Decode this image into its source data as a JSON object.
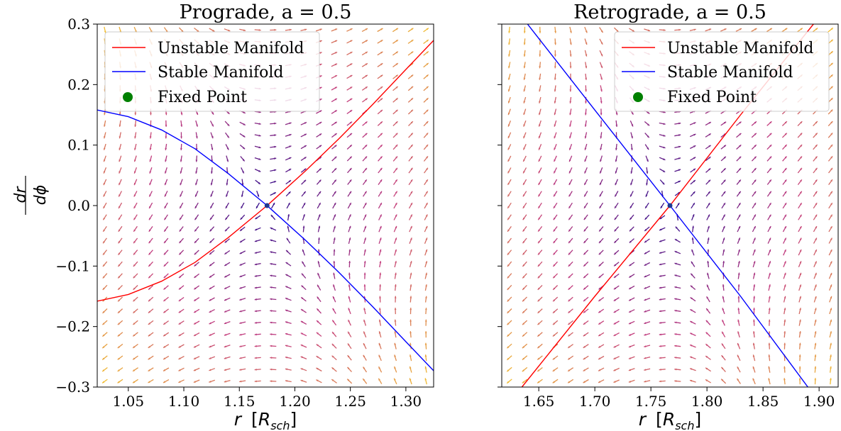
{
  "chart_data": [
    {
      "type": "quiver",
      "title": "Prograde, a = 0.5",
      "xlabel": "r  [R_sch]",
      "ylabel": "dr/dφ",
      "xlim": [
        1.022,
        1.325
      ],
      "ylim": [
        -0.3,
        0.3
      ],
      "xticks": [
        1.05,
        1.1,
        1.15,
        1.2,
        1.25,
        1.3
      ],
      "xtick_labels": [
        "1.05",
        "1.10",
        "1.15",
        "1.20",
        "1.25",
        "1.30"
      ],
      "yticks": [
        0.3,
        0.2,
        0.1,
        0.0,
        -0.1,
        -0.2,
        -0.3
      ],
      "ytick_labels": [
        "0.3",
        "0.2",
        "0.1",
        "0.0",
        "−0.1",
        "−0.2",
        "−0.3"
      ],
      "fixed_point": [
        1.175,
        0.0
      ],
      "grid": false,
      "legend_position": "upper left",
      "legend": [
        "Unstable Manifold",
        "Stable Manifold",
        "Fixed Point"
      ],
      "series": [
        {
          "name": "Unstable Manifold",
          "color": "#ff0000",
          "x": [
            1.022,
            1.05,
            1.08,
            1.11,
            1.14,
            1.175,
            1.21,
            1.24,
            1.27,
            1.3,
            1.325
          ],
          "y": [
            -0.158,
            -0.147,
            -0.125,
            -0.094,
            -0.053,
            0.0,
            0.058,
            0.111,
            0.167,
            0.225,
            0.273
          ]
        },
        {
          "name": "Stable Manifold",
          "color": "#0000ff",
          "x": [
            1.022,
            1.05,
            1.08,
            1.11,
            1.14,
            1.175,
            1.21,
            1.24,
            1.27,
            1.3,
            1.325
          ],
          "y": [
            0.158,
            0.147,
            0.125,
            0.094,
            0.053,
            0.0,
            -0.058,
            -0.111,
            -0.167,
            -0.225,
            -0.273
          ]
        }
      ]
    },
    {
      "type": "quiver",
      "title": "Retrograde, a = 0.5",
      "xlabel": "r  [R_sch]",
      "xlim": [
        1.617,
        1.917
      ],
      "ylim": [
        -0.3,
        0.3
      ],
      "xticks": [
        1.65,
        1.7,
        1.75,
        1.8,
        1.85,
        1.9
      ],
      "xtick_labels": [
        "1.65",
        "1.70",
        "1.75",
        "1.80",
        "1.85",
        "1.90"
      ],
      "yticks": [
        0.3,
        0.2,
        0.1,
        0.0,
        -0.1,
        -0.2,
        -0.3
      ],
      "fixed_point": [
        1.767,
        0.0
      ],
      "grid": false,
      "legend_position": "upper right",
      "legend": [
        "Unstable Manifold",
        "Stable Manifold",
        "Fixed Point"
      ],
      "series": [
        {
          "name": "Unstable Manifold",
          "color": "#ff0000",
          "x": [
            1.635,
            1.7,
            1.767,
            1.83,
            1.895
          ],
          "y": [
            -0.3,
            -0.15,
            0.0,
            0.15,
            0.3
          ]
        },
        {
          "name": "Stable Manifold",
          "color": "#0000ff",
          "x": [
            1.64,
            1.7,
            1.767,
            1.83,
            1.89
          ],
          "y": [
            0.3,
            0.158,
            0.0,
            -0.15,
            -0.3
          ]
        }
      ]
    }
  ],
  "colors": {
    "unstable": "#ff0000",
    "stable": "#0000ff",
    "fixed_point": "#008000",
    "field_low": "#2a0a8c",
    "field_mid": "#c43e7f",
    "field_high": "#f9d423"
  }
}
